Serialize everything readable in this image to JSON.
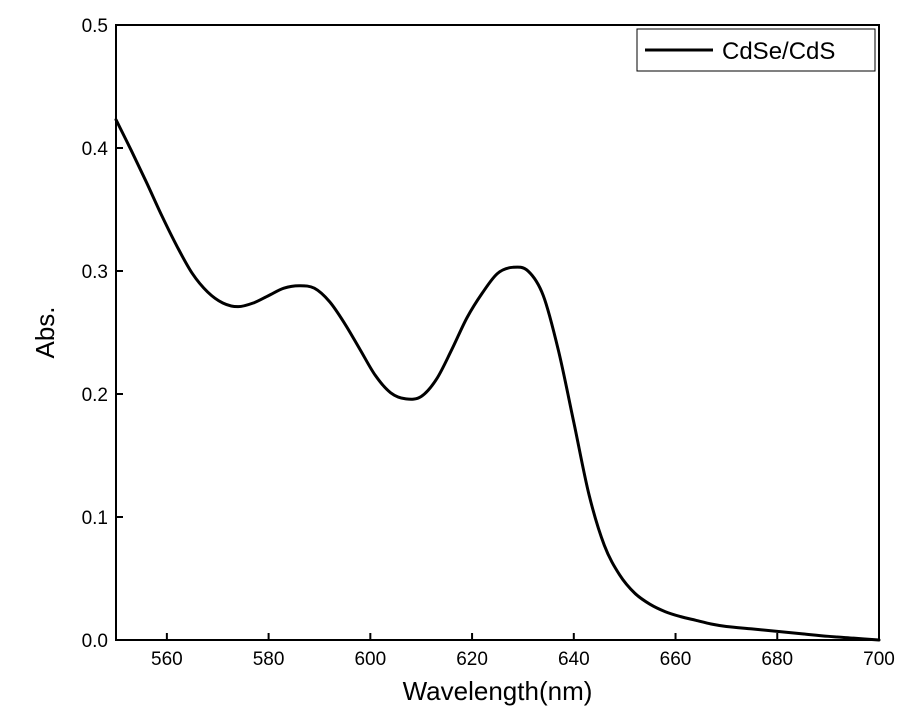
{
  "chart_data": {
    "type": "line",
    "xlabel": "Wavelength(nm)",
    "ylabel": "Abs.",
    "xlim": [
      550,
      700
    ],
    "ylim": [
      0,
      0.5
    ],
    "x_ticks": [
      560,
      580,
      600,
      620,
      640,
      660,
      680,
      700
    ],
    "y_ticks": [
      0.0,
      0.1,
      0.2,
      0.3,
      0.4,
      0.5
    ],
    "grid": false,
    "legend_position": "top-right",
    "series_color": "#000000",
    "series": [
      {
        "name": "CdSe/CdS",
        "x": [
          550,
          553,
          556,
          559,
          562,
          565,
          568,
          571,
          574,
          577,
          580,
          583,
          586,
          589,
          592,
          595,
          598,
          601,
          604,
          607,
          610,
          613,
          616,
          619,
          622,
          625,
          628,
          631,
          634,
          637,
          640,
          643,
          646,
          649,
          652,
          655,
          658,
          661,
          664,
          667,
          670,
          675,
          680,
          685,
          690,
          695,
          700
        ],
        "y": [
          0.423,
          0.398,
          0.372,
          0.345,
          0.32,
          0.298,
          0.283,
          0.274,
          0.271,
          0.274,
          0.28,
          0.286,
          0.288,
          0.286,
          0.275,
          0.257,
          0.236,
          0.215,
          0.201,
          0.196,
          0.198,
          0.212,
          0.236,
          0.262,
          0.282,
          0.298,
          0.303,
          0.3,
          0.28,
          0.235,
          0.177,
          0.118,
          0.077,
          0.053,
          0.038,
          0.029,
          0.023,
          0.019,
          0.016,
          0.013,
          0.011,
          0.009,
          0.007,
          0.005,
          0.003,
          0.0015,
          0.0
        ]
      }
    ]
  }
}
